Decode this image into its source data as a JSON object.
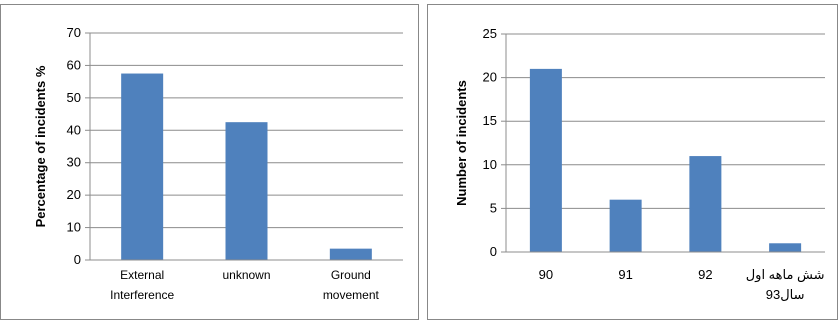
{
  "chart_data": [
    {
      "type": "bar",
      "categories": [
        [
          "External",
          "Interference"
        ],
        [
          "unknown"
        ],
        [
          "Ground",
          "movement"
        ]
      ],
      "values": [
        57.5,
        42.5,
        3.5
      ],
      "xlabel": "",
      "ylabel": "Percentage of incidents %",
      "ylim": [
        0,
        70
      ],
      "yticks": [
        0,
        10,
        20,
        30,
        40,
        50,
        60,
        70
      ],
      "grid": true,
      "bar_color": "#4f81bd"
    },
    {
      "type": "bar",
      "categories": [
        [
          "90"
        ],
        [
          "91"
        ],
        [
          "92"
        ],
        [
          "شش ماهه اول",
          "سال93"
        ]
      ],
      "values": [
        21,
        6,
        11,
        1
      ],
      "xlabel": "",
      "ylabel": "Number of incidents",
      "ylim": [
        0,
        25
      ],
      "yticks": [
        0,
        5,
        10,
        15,
        20,
        25
      ],
      "grid": true,
      "bar_color": "#4f81bd"
    }
  ]
}
